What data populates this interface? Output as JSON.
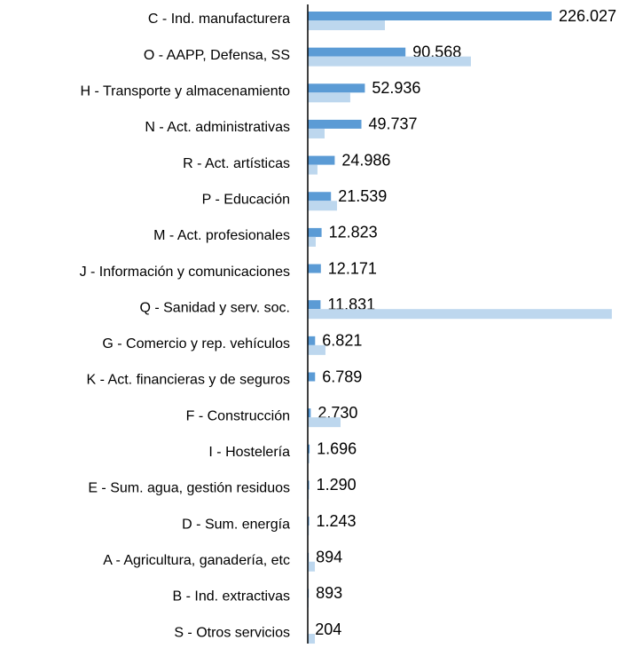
{
  "chart_data": {
    "type": "hbar",
    "categories": [
      "C - Ind. manufacturera",
      "O - AAPP, Defensa, SS",
      "H - Transporte y almacenamiento",
      "N - Act. administrativas",
      "R - Act. artísticas",
      "P - Educación",
      "M - Act. profesionales",
      "J - Información y comunicaciones",
      "Q - Sanidad y serv. soc.",
      "G - Comercio y rep. vehículos",
      "K - Act. financieras y de seguros",
      "F - Construcción",
      "I - Hostelería",
      "E - Sum. agua, gestión residuos",
      "D - Sum. energía",
      "A - Agricultura, ganadería, etc",
      "B - Ind. extractivas",
      "S - Otros servicios"
    ],
    "series": [
      {
        "color": "#5b9bd5",
        "values": [
          226027,
          90568,
          52936,
          49737,
          24986,
          21539,
          12823,
          12171,
          11831,
          6821,
          6789,
          2730,
          1696,
          1290,
          1243,
          894,
          893,
          204
        ],
        "value_labels": [
          "226.027",
          "90.568",
          "52.936",
          "49.737",
          "24.986",
          "21.539",
          "12.823",
          "12.171",
          "11.831",
          "6.821",
          "6.789",
          "2.730",
          "1.696",
          "1.290",
          "1.243",
          "894",
          "893",
          "204"
        ]
      },
      {
        "color": "#bdd7ee",
        "values": [
          71500,
          151200,
          39400,
          15600,
          9000,
          27100,
          7400,
          0,
          281800,
          16400,
          0,
          30400,
          1600,
          1000,
          1000,
          6600,
          800,
          6600
        ]
      }
    ],
    "xlim": [
      0,
      300000
    ]
  }
}
